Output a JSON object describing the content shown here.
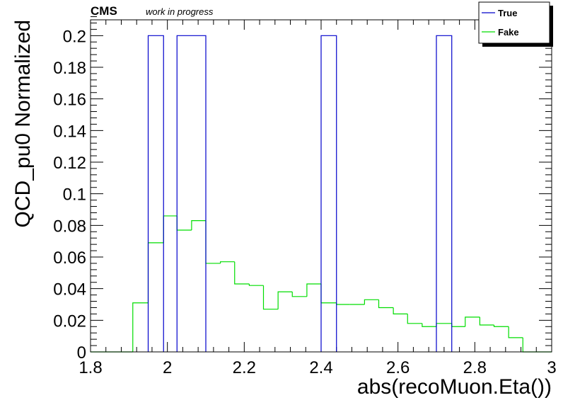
{
  "header": {
    "cms_label": "CMS",
    "status_label": "work in progress"
  },
  "chart_data": {
    "type": "histogram",
    "xlabel": "abs(recoMuon.Eta())",
    "ylabel": "QCD_pu0 Normalized",
    "xlim": [
      1.8,
      3.0
    ],
    "ylim": [
      0,
      0.21
    ],
    "bin_width": 0.04,
    "x_ticks": [
      "1.8",
      "2",
      "2.2",
      "2.4",
      "2.6",
      "2.8",
      "3"
    ],
    "y_ticks": [
      "0",
      "0.02",
      "0.04",
      "0.06",
      "0.08",
      "0.1",
      "0.12",
      "0.14",
      "0.16",
      "0.18",
      "0.2"
    ],
    "legend_position": "top-right",
    "series": [
      {
        "name": "True",
        "color": "#0000cc",
        "bins": [
          {
            "x_low": 1.95,
            "x_high": 1.99,
            "value": 0.2
          },
          {
            "x_low": 2.025,
            "x_high": 2.1,
            "value": 0.2
          },
          {
            "x_low": 2.4,
            "x_high": 2.44,
            "value": 0.2
          },
          {
            "x_low": 2.7,
            "x_high": 2.74,
            "value": 0.2
          }
        ]
      },
      {
        "name": "Fake",
        "color": "#00dd00",
        "bins": [
          {
            "x_low": 1.8,
            "x_high": 1.91,
            "value": 0.0
          },
          {
            "x_low": 1.91,
            "x_high": 1.95,
            "value": 0.031
          },
          {
            "x_low": 1.95,
            "x_high": 1.99,
            "value": 0.069
          },
          {
            "x_low": 1.99,
            "x_high": 2.025,
            "value": 0.086
          },
          {
            "x_low": 2.025,
            "x_high": 2.063,
            "value": 0.077
          },
          {
            "x_low": 2.063,
            "x_high": 2.1,
            "value": 0.083
          },
          {
            "x_low": 2.1,
            "x_high": 2.138,
            "value": 0.056
          },
          {
            "x_low": 2.138,
            "x_high": 2.175,
            "value": 0.057
          },
          {
            "x_low": 2.175,
            "x_high": 2.213,
            "value": 0.043
          },
          {
            "x_low": 2.213,
            "x_high": 2.25,
            "value": 0.042
          },
          {
            "x_low": 2.25,
            "x_high": 2.288,
            "value": 0.027
          },
          {
            "x_low": 2.288,
            "x_high": 2.325,
            "value": 0.038
          },
          {
            "x_low": 2.325,
            "x_high": 2.363,
            "value": 0.035
          },
          {
            "x_low": 2.363,
            "x_high": 2.4,
            "value": 0.043
          },
          {
            "x_low": 2.4,
            "x_high": 2.44,
            "value": 0.031
          },
          {
            "x_low": 2.44,
            "x_high": 2.475,
            "value": 0.03
          },
          {
            "x_low": 2.475,
            "x_high": 2.513,
            "value": 0.03
          },
          {
            "x_low": 2.513,
            "x_high": 2.55,
            "value": 0.033
          },
          {
            "x_low": 2.55,
            "x_high": 2.588,
            "value": 0.028
          },
          {
            "x_low": 2.588,
            "x_high": 2.625,
            "value": 0.024
          },
          {
            "x_low": 2.625,
            "x_high": 2.663,
            "value": 0.018
          },
          {
            "x_low": 2.663,
            "x_high": 2.7,
            "value": 0.016
          },
          {
            "x_low": 2.7,
            "x_high": 2.74,
            "value": 0.018
          },
          {
            "x_low": 2.74,
            "x_high": 2.775,
            "value": 0.016
          },
          {
            "x_low": 2.775,
            "x_high": 2.813,
            "value": 0.022
          },
          {
            "x_low": 2.813,
            "x_high": 2.85,
            "value": 0.017
          },
          {
            "x_low": 2.85,
            "x_high": 2.888,
            "value": 0.016
          },
          {
            "x_low": 2.888,
            "x_high": 2.925,
            "value": 0.009
          },
          {
            "x_low": 2.925,
            "x_high": 3.0,
            "value": 0.0
          }
        ]
      }
    ]
  }
}
